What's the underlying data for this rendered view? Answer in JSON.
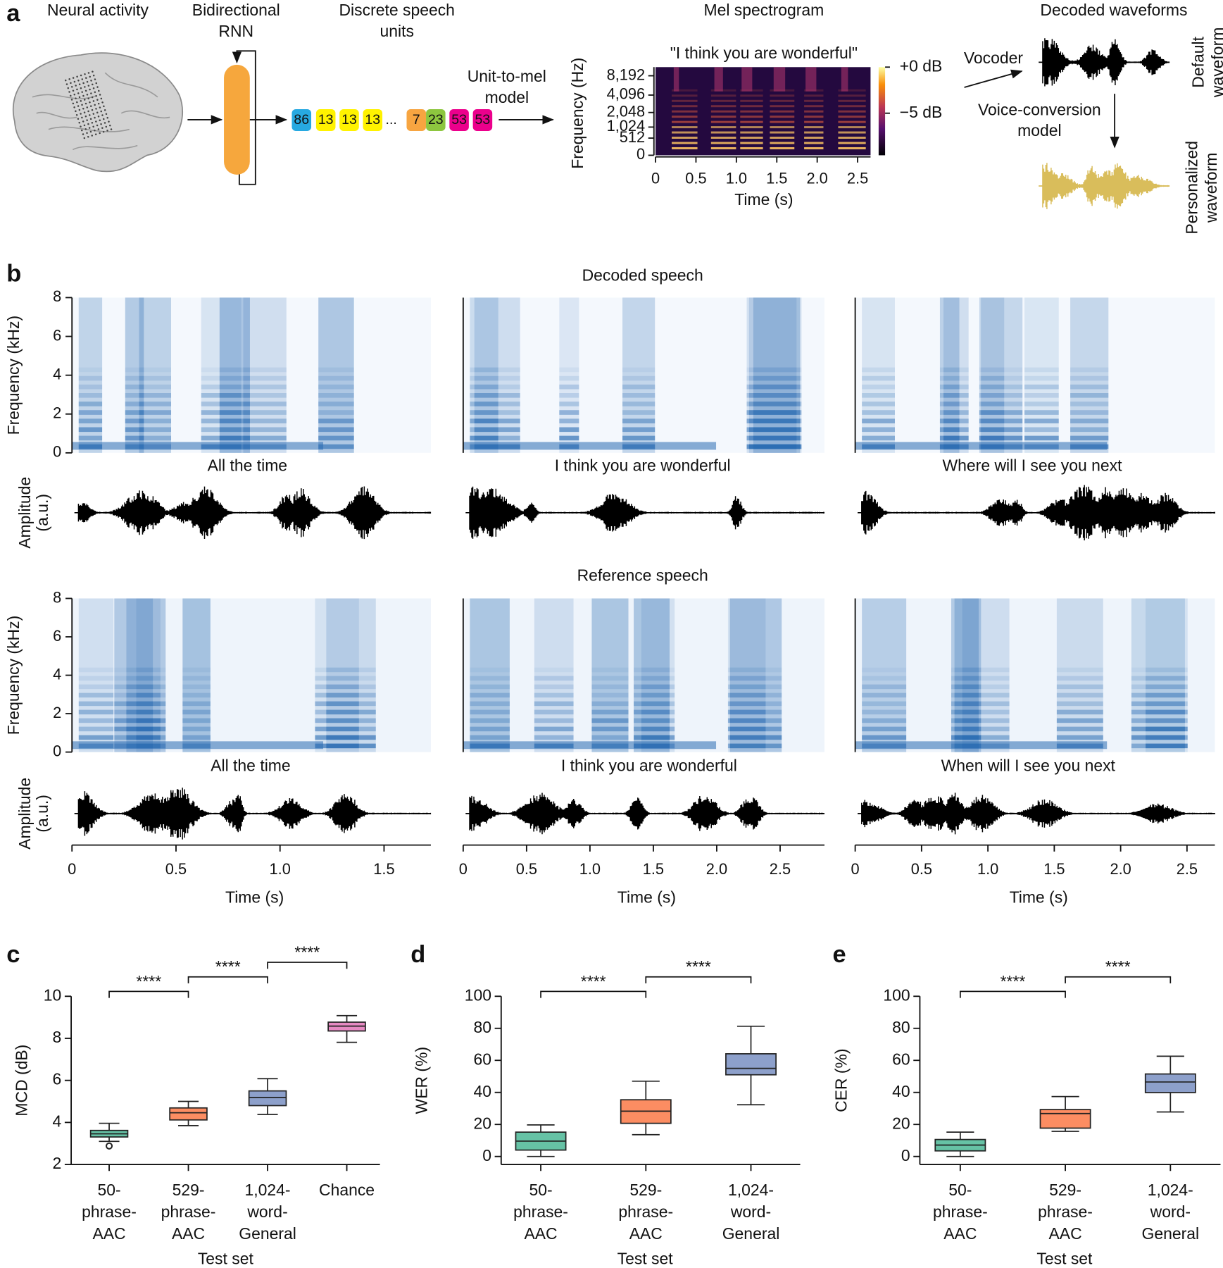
{
  "panel_labels": [
    "a",
    "b",
    "c",
    "d",
    "e"
  ],
  "diagram": {
    "neural_activity": "Neural activity",
    "rnn": "Bidirectional\nRNN",
    "speech_units": "Discrete speech\nunits",
    "units": [
      "86",
      "13",
      "13",
      "13",
      "7",
      "23",
      "53",
      "53"
    ],
    "unit_colors": [
      "#27a9e1",
      "#fff200",
      "#fff200",
      "#fff200",
      "#f7a541",
      "#8dc63f",
      "#ec008c",
      "#ec008c"
    ],
    "ellipsis": "...",
    "unit_to_mel": "Unit-to-mel\nmodel",
    "mel_title": "Mel spectrogram",
    "mel_quote": "\"I think you are wonderful\"",
    "mel_ylabel": "Frequency (Hz)",
    "mel_yscale": "mel",
    "mel_ylim": [
      0,
      11025
    ],
    "mel_yticks": [
      0,
      512,
      {
        "value": 1024,
        "label": "1,024"
      },
      {
        "value": 2048,
        "label": "2,048"
      },
      {
        "value": 4096,
        "label": "4,096"
      },
      {
        "value": 8192,
        "label": "8,192"
      }
    ],
    "mel_xlim": [
      0,
      2.66
    ],
    "mel_xticks": [
      0,
      0.5,
      {
        "value": 1,
        "label": "1.0"
      },
      1.5,
      {
        "value": 2,
        "label": "2.0"
      },
      2.5
    ],
    "mel_xlabel": "Time (s)",
    "colorbar_labels": [
      "+0 dB",
      "−5 dB"
    ],
    "waveforms_title": "Decoded waveforms",
    "vocoder": "Vocoder",
    "default_waveform": "Default\nwaveform",
    "voice_conversion": "Voice-conversion\nmodel",
    "personalized_waveform": "Personalized\nwaveform",
    "default_color": "#000000",
    "personalized_color": "#d9bd5b"
  },
  "spectrograms": {
    "decoded_title": "Decoded speech",
    "reference_title": "Reference speech",
    "ylabel": "Frequency (kHz)",
    "ylim": [
      0,
      8
    ],
    "yticks": [
      0,
      2,
      4,
      6,
      8
    ],
    "amplitude_label": "Amplitude\n(a.u.)",
    "xlabel": "Time (s)",
    "color": "#2a6cb3",
    "columns": [
      {
        "xlim": [
          0,
          1.725
        ],
        "xticks": [
          0,
          0.5,
          {
            "value": 1,
            "label": "1.0"
          },
          1.5
        ],
        "decoded_caption": "All the time",
        "reference_caption": "All the time"
      },
      {
        "xlim": [
          0,
          2.85
        ],
        "xticks": [
          0,
          0.5,
          {
            "value": 1,
            "label": "1.0"
          },
          1.5,
          {
            "value": 2,
            "label": "2.0"
          },
          2.5
        ],
        "decoded_caption": "I think you are wonderful",
        "reference_caption": "I think you are wonderful"
      },
      {
        "xlim": [
          0,
          2.71
        ],
        "xticks": [
          0,
          0.5,
          {
            "value": 1,
            "label": "1.0"
          },
          1.5,
          {
            "value": 2,
            "label": "2.0"
          },
          2.5
        ],
        "decoded_caption": "Where will I see you next",
        "reference_caption": "When will I see you next"
      }
    ]
  },
  "chart_data": [
    {
      "type": "box",
      "ylabel": "MCD (dB)",
      "xlabel": "Test set",
      "categories": [
        "50-\nphrase-\nAAC",
        "529-\nphrase-\nAAC",
        "1,024-\nword-\nGeneral",
        "Chance"
      ],
      "colors": [
        "#66c2a5",
        "#fc8d62",
        "#8da0cb",
        "#e78ac3"
      ],
      "whisker_low": [
        3.1,
        3.85,
        4.38,
        7.81
      ],
      "q1": [
        3.31,
        4.12,
        4.8,
        8.35
      ],
      "median": [
        3.46,
        4.46,
        5.19,
        8.58
      ],
      "q3": [
        3.62,
        4.69,
        5.5,
        8.77
      ],
      "whisker_high": [
        3.96,
        5.0,
        6.08,
        9.08
      ],
      "outliers": [
        [
          2.88
        ],
        [],
        [],
        []
      ],
      "ylim": [
        2,
        10
      ],
      "yticks": [
        2,
        4,
        6,
        8,
        10
      ],
      "significance": [
        {
          "from": 0,
          "to": 1,
          "label": "****"
        },
        {
          "from": 1,
          "to": 2,
          "label": "****"
        },
        {
          "from": 2,
          "to": 3,
          "label": "****"
        }
      ]
    },
    {
      "type": "box",
      "ylabel": "WER (%)",
      "xlabel": "Test set",
      "categories": [
        "50-\nphrase-\nAAC",
        "529-\nphrase-\nAAC",
        "1,024-\nword-\nGeneral"
      ],
      "colors": [
        "#66c2a5",
        "#fc8d62",
        "#8da0cb"
      ],
      "whisker_low": [
        0,
        13.6,
        32.3
      ],
      "q1": [
        4,
        20.7,
        51
      ],
      "median": [
        9.6,
        28.3,
        55
      ],
      "q3": [
        15.2,
        35.4,
        64.1
      ],
      "whisker_high": [
        19.7,
        47,
        81.3
      ],
      "outliers": [
        [],
        [],
        []
      ],
      "ylim": [
        -5,
        100
      ],
      "yticks": [
        0,
        20,
        40,
        60,
        80,
        100
      ],
      "significance": [
        {
          "from": 0,
          "to": 1,
          "label": "****"
        },
        {
          "from": 1,
          "to": 2,
          "label": "****"
        }
      ]
    },
    {
      "type": "box",
      "ylabel": "CER (%)",
      "xlabel": "Test set",
      "categories": [
        "50-\nphrase-\nAAC",
        "529-\nphrase-\nAAC",
        "1,024-\nword-\nGeneral"
      ],
      "colors": [
        "#66c2a5",
        "#fc8d62",
        "#8da0cb"
      ],
      "whisker_low": [
        0,
        15.7,
        27.8
      ],
      "q1": [
        3.5,
        17.7,
        39.9
      ],
      "median": [
        7.1,
        26.8,
        46.5
      ],
      "q3": [
        10.6,
        29.3,
        51.5
      ],
      "whisker_high": [
        15.2,
        37.4,
        62.6
      ],
      "outliers": [
        [],
        [],
        []
      ],
      "ylim": [
        -5,
        100
      ],
      "yticks": [
        0,
        20,
        40,
        60,
        80,
        100
      ],
      "significance": [
        {
          "from": 0,
          "to": 1,
          "label": "****"
        },
        {
          "from": 1,
          "to": 2,
          "label": "****"
        }
      ]
    }
  ]
}
